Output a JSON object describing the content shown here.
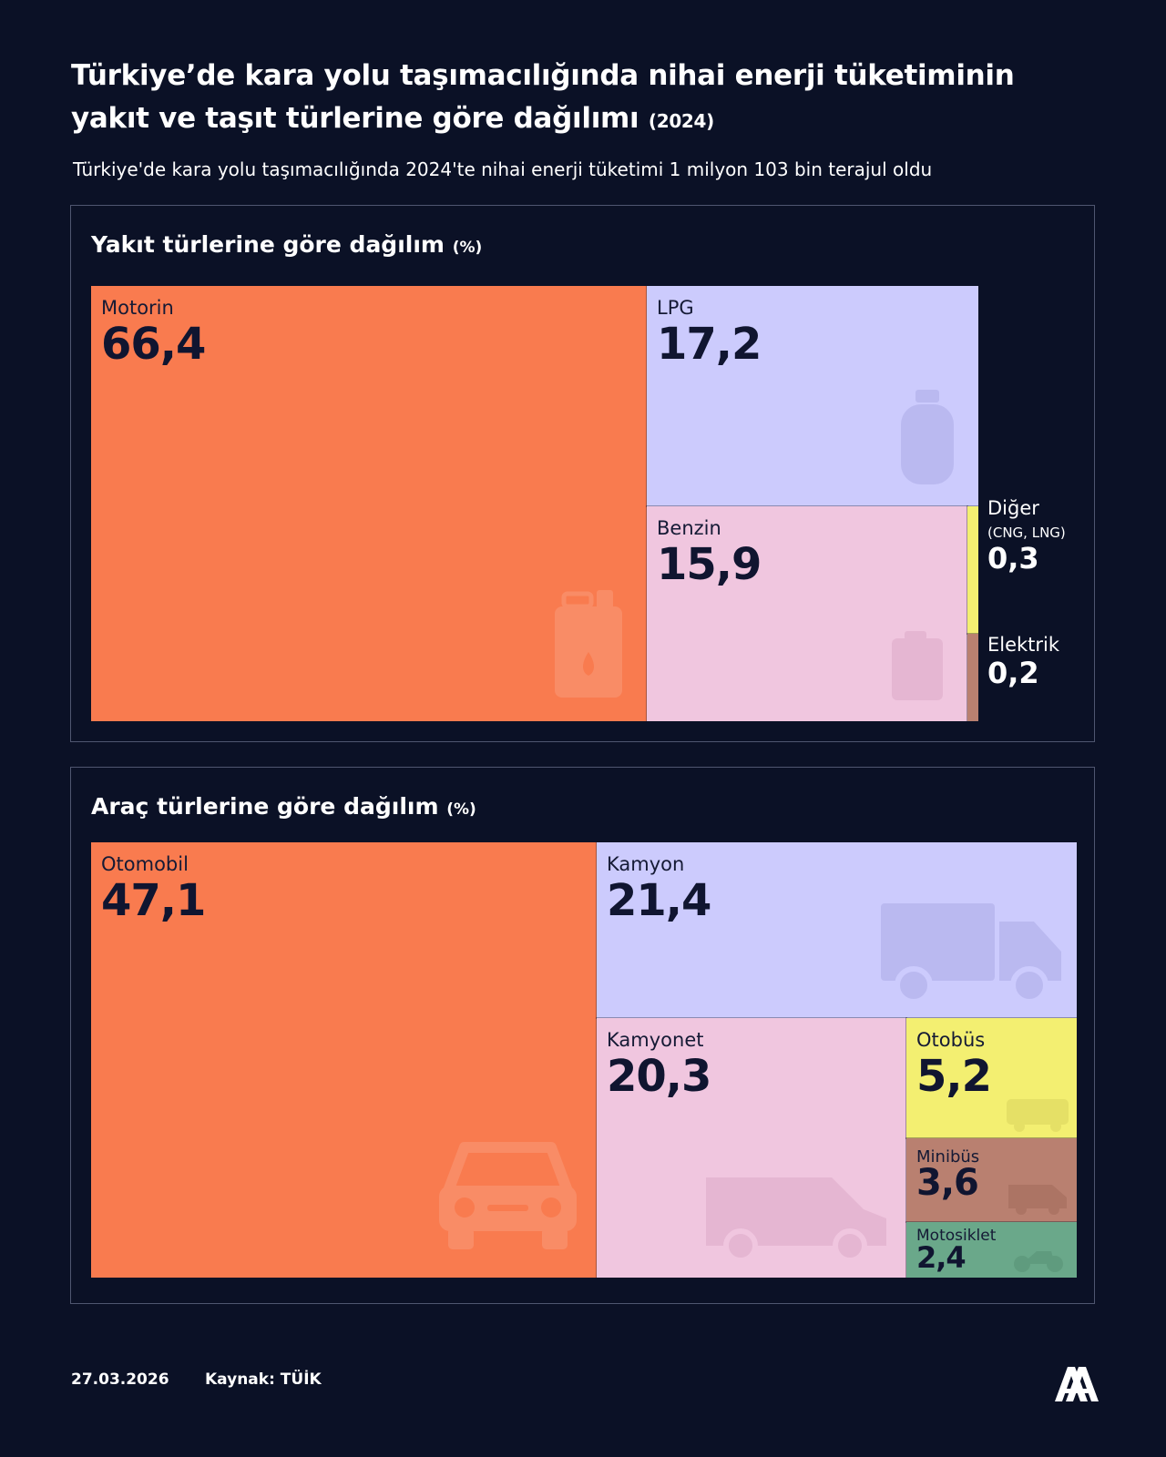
{
  "header": {
    "title_line1": "Türkiye’de kara yolu taşımacılığında nihai enerji tüketiminin",
    "title_line2": "yakıt ve taşıt türlerine göre dağılımı",
    "title_year": "(2024)",
    "subtitle": "Türkiye'de kara yolu taşımacılığında 2024'te nihai enerji tüketimi 1 milyon 103 bin terajul oldu"
  },
  "chart_data": [
    {
      "type": "treemap",
      "title": "Yakıt türlerine göre dağılım",
      "unit": "(%)",
      "items": [
        {
          "label": "Motorin",
          "value_text": "66,4",
          "value": 66.4,
          "color": "#f97b4f",
          "icon": "jerrycan-icon"
        },
        {
          "label": "LPG",
          "value_text": "17,2",
          "value": 17.2,
          "color": "#cccbfd",
          "icon": "gas-cylinder-icon"
        },
        {
          "label": "Benzin",
          "value_text": "15,9",
          "value": 15.9,
          "color": "#f0c6df",
          "icon": "fuel-can-icon"
        },
        {
          "label": "Diğer",
          "sublabel": "(CNG, LNG)",
          "value_text": "0,3",
          "value": 0.3,
          "color": "#f3ef71"
        },
        {
          "label": "Elektrik",
          "value_text": "0,2",
          "value": 0.2,
          "color": "#b98070"
        }
      ]
    },
    {
      "type": "treemap",
      "title": "Araç türlerine göre dağılım",
      "unit": "(%)",
      "items": [
        {
          "label": "Otomobil",
          "value_text": "47,1",
          "value": 47.1,
          "color": "#f97b4f",
          "icon": "car-icon"
        },
        {
          "label": "Kamyon",
          "value_text": "21,4",
          "value": 21.4,
          "color": "#cccbfd",
          "icon": "truck-icon"
        },
        {
          "label": "Kamyonet",
          "value_text": "20,3",
          "value": 20.3,
          "color": "#f0c6df",
          "icon": "van-icon"
        },
        {
          "label": "Otobüs",
          "value_text": "5,2",
          "value": 5.2,
          "color": "#f3ef71",
          "icon": "bus-icon"
        },
        {
          "label": "Minibüs",
          "value_text": "3,6",
          "value": 3.6,
          "color": "#b98070",
          "icon": "minibus-icon"
        },
        {
          "label": "Motosiklet",
          "value_text": "2,4",
          "value": 2.4,
          "color": "#6aa88a",
          "icon": "motorcycle-icon"
        }
      ]
    }
  ],
  "footer": {
    "date": "27.03.2026",
    "source": "Kaynak: TÜİK",
    "logo_text": "AA"
  }
}
